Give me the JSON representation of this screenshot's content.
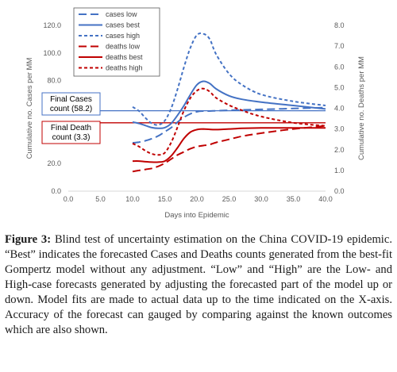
{
  "chart_data": {
    "type": "line",
    "xlabel": "Days into Epidemic",
    "ylabel_left": "Cumulative no. Cases per MM",
    "ylabel_right": "Cumulative no. Deaths per MM",
    "xlim": [
      0,
      40
    ],
    "ylim_left": [
      0,
      120
    ],
    "ylim_right": [
      0,
      8
    ],
    "x_ticks": [
      "0.0",
      "5.0",
      "10.0",
      "15.0",
      "20.0",
      "25.0",
      "30.0",
      "35.0",
      "40.0"
    ],
    "y_left_ticks": [
      "0.0",
      "20.0",
      "40.0",
      "60.0",
      "80.0",
      "100.0",
      "120.0"
    ],
    "y_right_ticks": [
      "0.0",
      "1.0",
      "2.0",
      "3.0",
      "4.0",
      "5.0",
      "6.0",
      "7.0",
      "8.0"
    ],
    "grid": false,
    "legend_position": "top-left",
    "series": [
      {
        "name": "cases low",
        "axis": "left",
        "color": "#4472c4",
        "dash": "long",
        "x": [
          10,
          11,
          12,
          13,
          14,
          15,
          16,
          17,
          18,
          19,
          20,
          21,
          22,
          23,
          25,
          27,
          30,
          35,
          40
        ],
        "y": [
          35,
          35.5,
          36.5,
          38,
          40,
          43,
          46,
          50,
          53.5,
          56,
          57.5,
          58,
          58,
          58.2,
          58.5,
          58.8,
          59.2,
          59.8,
          60.5
        ]
      },
      {
        "name": "cases best",
        "axis": "left",
        "color": "#4472c4",
        "dash": "solid",
        "x": [
          10,
          11,
          12,
          13,
          14,
          15,
          16,
          17,
          18,
          19,
          20,
          21,
          22,
          23,
          25,
          27,
          30,
          35,
          40
        ],
        "y": [
          50,
          49,
          47.5,
          46,
          45.5,
          46,
          49,
          55,
          62,
          70,
          77,
          79.5,
          78,
          74,
          69,
          66.5,
          64.5,
          62,
          59.5
        ]
      },
      {
        "name": "cases high",
        "axis": "left",
        "color": "#4472c4",
        "dash": "short",
        "x": [
          10,
          11,
          12,
          13,
          14,
          15,
          16,
          17,
          18,
          19,
          20,
          21,
          22,
          23,
          25,
          27,
          30,
          35,
          40
        ],
        "y": [
          61,
          58,
          53,
          49,
          48,
          51,
          60,
          74,
          90,
          104,
          113,
          114,
          110,
          99,
          85,
          77,
          70,
          65,
          62
        ]
      },
      {
        "name": "deaths low",
        "axis": "right",
        "color": "#c00000",
        "dash": "long",
        "x": [
          10,
          11,
          12,
          13,
          14,
          15,
          16,
          17,
          18,
          19,
          20,
          21,
          22,
          23,
          25,
          27,
          30,
          35,
          40
        ],
        "y": [
          0.95,
          1.0,
          1.05,
          1.1,
          1.2,
          1.35,
          1.55,
          1.75,
          1.9,
          2.05,
          2.15,
          2.2,
          2.25,
          2.35,
          2.5,
          2.65,
          2.8,
          3.0,
          3.15
        ]
      },
      {
        "name": "deaths best",
        "axis": "right",
        "color": "#c00000",
        "dash": "solid",
        "x": [
          10,
          11,
          12,
          13,
          14,
          15,
          16,
          17,
          18,
          19,
          20,
          21,
          22,
          23,
          25,
          27,
          30,
          35,
          40
        ],
        "y": [
          1.45,
          1.45,
          1.42,
          1.4,
          1.4,
          1.45,
          1.7,
          2.1,
          2.55,
          2.85,
          2.97,
          3.0,
          2.98,
          2.97,
          3.0,
          3.03,
          3.05,
          3.05,
          3.05
        ]
      },
      {
        "name": "deaths high",
        "axis": "right",
        "color": "#c00000",
        "dash": "short",
        "x": [
          10,
          11,
          12,
          13,
          14,
          15,
          16,
          17,
          18,
          19,
          20,
          21,
          22,
          23,
          25,
          27,
          30,
          35,
          40
        ],
        "y": [
          2.3,
          2.15,
          1.95,
          1.8,
          1.75,
          1.85,
          2.35,
          3.1,
          3.9,
          4.5,
          4.85,
          4.95,
          4.8,
          4.5,
          4.15,
          3.9,
          3.6,
          3.3,
          3.15
        ]
      }
    ],
    "reference_lines": [
      {
        "axis": "left",
        "value": 58.2,
        "color": "#4472c4"
      },
      {
        "axis": "right",
        "value": 3.3,
        "color": "#c00000"
      }
    ],
    "annotations": [
      {
        "lines": [
          "Final Cases",
          "count (58.2)"
        ],
        "color": "#4472c4"
      },
      {
        "lines": [
          "Final Death",
          "count (3.3)"
        ],
        "color": "#c00000"
      }
    ]
  },
  "caption": {
    "label": "Figure 3:",
    "text": " Blind test of uncertainty estimation on the China COVID-19 epidemic. “Best” indicates the forecasted Cases and Deaths counts generated from the best-fit Gompertz model without any adjustment. “Low” and “High” are the Low- and High-case forecasts generated by adjusting the forecasted part of the model up or down. Model fits are made to actual data up to the time indicated on the X-axis. Accuracy of the forecast can gauged by comparing against the known outcomes which are also shown."
  }
}
